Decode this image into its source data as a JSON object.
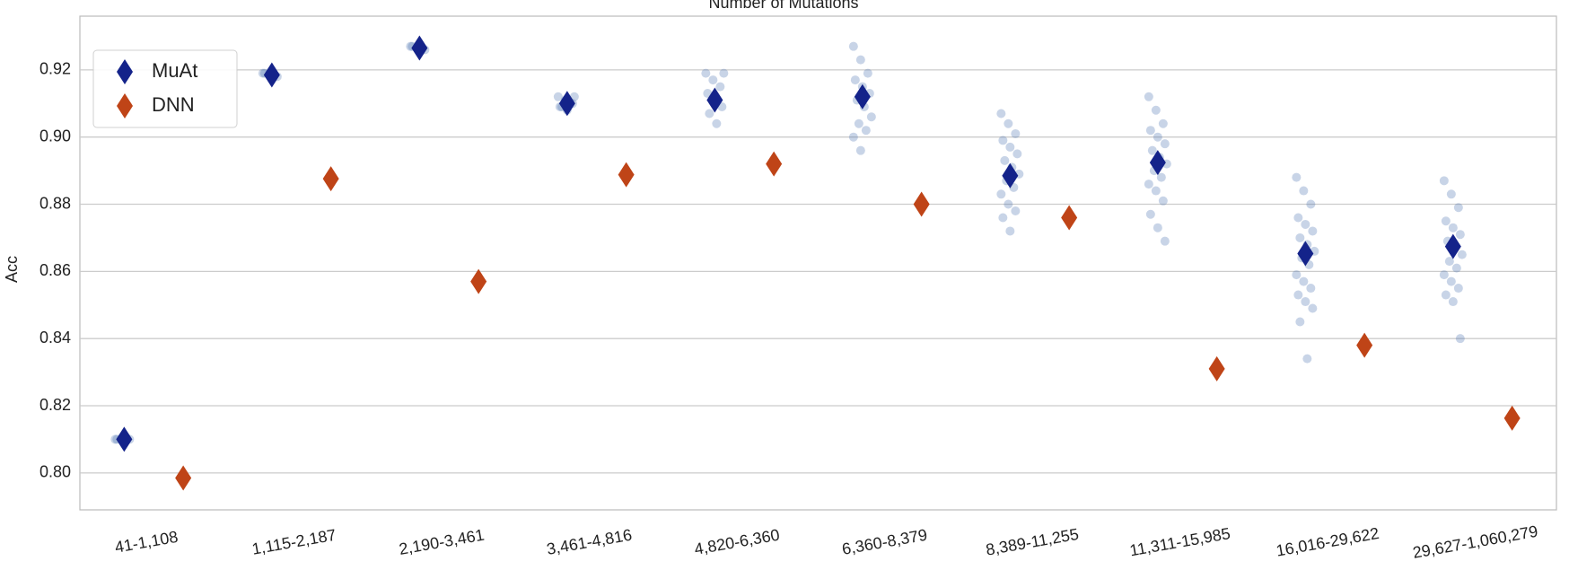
{
  "chart_data": {
    "type": "strip-mean",
    "title": "Number of Mutations",
    "ylabel": "Acc",
    "categories": [
      "41-1,108",
      "1,115-2,187",
      "2,190-3,461",
      "3,461-4,816",
      "4,820-6,360",
      "6,360-8,379",
      "8,389-11,255",
      "11,311-15,985",
      "16,016-29,622",
      "29,627-1,060,279"
    ],
    "series": [
      {
        "name": "MuAt",
        "color": "#14238a",
        "point_color": "#4a6fb0",
        "values": [
          0.81,
          0.9185,
          0.9265,
          0.91,
          0.911,
          0.912,
          0.8885,
          0.8924,
          0.8653,
          0.8674
        ],
        "points": [
          [
            0.81,
            0.81,
            0.81,
            0.81,
            0.81
          ],
          [
            0.919,
            0.919,
            0.918,
            0.919
          ],
          [
            0.927,
            0.927,
            0.926,
            0.927
          ],
          [
            0.912,
            0.911,
            0.91,
            0.909,
            0.908,
            0.912,
            0.909
          ],
          [
            0.919,
            0.917,
            0.915,
            0.913,
            0.911,
            0.909,
            0.907,
            0.904,
            0.919
          ],
          [
            0.927,
            0.923,
            0.919,
            0.917,
            0.915,
            0.913,
            0.911,
            0.909,
            0.906,
            0.904,
            0.902,
            0.9,
            0.896
          ],
          [
            0.907,
            0.904,
            0.901,
            0.899,
            0.897,
            0.895,
            0.893,
            0.891,
            0.889,
            0.887,
            0.885,
            0.883,
            0.88,
            0.878,
            0.876,
            0.872
          ],
          [
            0.912,
            0.908,
            0.904,
            0.902,
            0.9,
            0.898,
            0.896,
            0.894,
            0.892,
            0.89,
            0.888,
            0.886,
            0.884,
            0.881,
            0.877,
            0.873,
            0.869
          ],
          [
            0.888,
            0.884,
            0.88,
            0.876,
            0.874,
            0.872,
            0.87,
            0.868,
            0.866,
            0.864,
            0.862,
            0.859,
            0.857,
            0.855,
            0.853,
            0.851,
            0.849,
            0.845,
            0.834
          ],
          [
            0.887,
            0.883,
            0.879,
            0.875,
            0.873,
            0.871,
            0.869,
            0.867,
            0.865,
            0.863,
            0.861,
            0.859,
            0.857,
            0.855,
            0.853,
            0.851,
            0.84
          ]
        ]
      },
      {
        "name": "DNN",
        "color": "#bf4417",
        "values": [
          0.7985,
          0.8876,
          0.857,
          0.8888,
          0.892,
          0.88,
          0.876,
          0.831,
          0.838,
          0.8163
        ]
      }
    ],
    "ylim": [
      0.789,
      0.936
    ],
    "yticks": [
      {
        "value": 0.8,
        "label": "0.80"
      },
      0.82,
      0.84,
      0.86,
      0.88,
      {
        "value": 0.9,
        "label": "0.90"
      },
      0.92
    ],
    "grid": true,
    "legend": "upper left"
  }
}
